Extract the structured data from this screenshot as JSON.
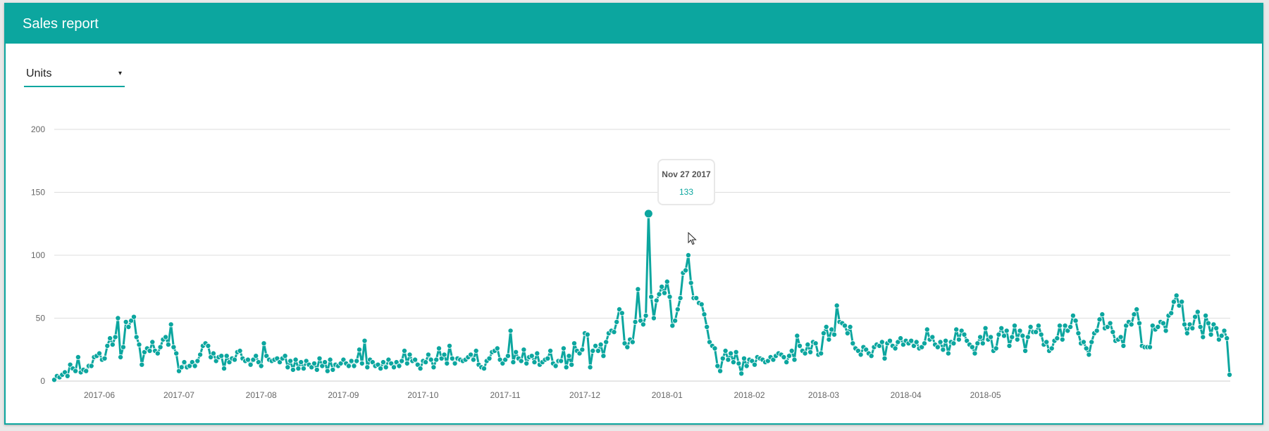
{
  "header": {
    "title": "Sales report"
  },
  "metric_select": {
    "value": "Units",
    "caret": "▾"
  },
  "colors": {
    "accent": "#0ca69f",
    "grid": "#dddddd",
    "axis_text": "#666666"
  },
  "tooltip": {
    "date": "Nov 27 2017",
    "value": "133"
  },
  "chart_data": {
    "type": "line",
    "title": "Sales report",
    "xlabel": "",
    "ylabel": "Units",
    "ylim": [
      0,
      200
    ],
    "yticks": [
      0,
      50,
      100,
      150,
      200
    ],
    "xticks": [
      "2017-06",
      "2017-07",
      "2017-08",
      "2017-09",
      "2017-10",
      "2017-11",
      "2017-12",
      "2018-01",
      "2018-02",
      "2018-03",
      "2018-04",
      "2018-05"
    ],
    "x_start": "2017-05-15",
    "x_end": "2018-05-15",
    "grid": true,
    "legend": null,
    "highlight": {
      "date": "Nov 27 2017",
      "value": 133
    },
    "series": [
      {
        "name": "Units",
        "values": [
          1,
          4,
          3,
          5,
          7,
          4,
          13,
          10,
          8,
          19,
          7,
          9,
          8,
          12,
          12,
          19,
          20,
          22,
          17,
          18,
          28,
          34,
          29,
          35,
          50,
          19,
          27,
          47,
          43,
          48,
          51,
          35,
          29,
          13,
          23,
          26,
          24,
          31,
          24,
          22,
          27,
          33,
          35,
          29,
          45,
          27,
          22,
          8,
          11,
          15,
          11,
          12,
          15,
          12,
          16,
          21,
          28,
          30,
          28,
          19,
          22,
          16,
          19,
          20,
          10,
          20,
          15,
          18,
          17,
          23,
          24,
          18,
          16,
          17,
          13,
          17,
          20,
          15,
          12,
          30,
          20,
          17,
          16,
          17,
          18,
          15,
          18,
          20,
          11,
          16,
          9,
          17,
          10,
          15,
          10,
          16,
          13,
          11,
          14,
          9,
          18,
          12,
          15,
          8,
          17,
          9,
          13,
          12,
          14,
          17,
          14,
          12,
          16,
          12,
          16,
          25,
          14,
          32,
          11,
          17,
          15,
          12,
          13,
          10,
          15,
          11,
          17,
          14,
          11,
          15,
          12,
          16,
          24,
          14,
          21,
          16,
          17,
          13,
          10,
          16,
          15,
          21,
          17,
          11,
          17,
          26,
          18,
          21,
          14,
          28,
          18,
          14,
          18,
          17,
          16,
          17,
          19,
          21,
          17,
          24,
          13,
          11,
          10,
          16,
          18,
          23,
          24,
          26,
          17,
          14,
          17,
          20,
          40,
          15,
          23,
          18,
          16,
          25,
          14,
          19,
          20,
          15,
          22,
          13,
          15,
          17,
          18,
          24,
          14,
          12,
          16,
          16,
          26,
          11,
          20,
          13,
          30,
          24,
          22,
          25,
          38,
          37,
          11,
          24,
          28,
          24,
          29,
          20,
          31,
          38,
          40,
          39,
          47,
          57,
          54,
          30,
          27,
          33,
          31,
          47,
          73,
          48,
          45,
          52,
          133,
          67,
          50,
          64,
          69,
          75,
          70,
          79,
          67,
          44,
          48,
          57,
          66,
          86,
          88,
          100,
          78,
          66,
          66,
          62,
          61,
          53,
          43,
          31,
          28,
          26,
          12,
          8,
          18,
          24,
          17,
          22,
          15,
          23,
          14,
          6,
          18,
          12,
          17,
          16,
          13,
          19,
          18,
          17,
          15,
          16,
          19,
          17,
          20,
          22,
          21,
          19,
          15,
          20,
          24,
          17,
          36,
          28,
          24,
          22,
          29,
          23,
          31,
          30,
          21,
          22,
          38,
          43,
          33,
          41,
          37,
          60,
          47,
          46,
          44,
          38,
          43,
          30,
          26,
          24,
          21,
          27,
          25,
          22,
          20,
          27,
          29,
          28,
          31,
          18,
          30,
          32,
          28,
          26,
          31,
          34,
          29,
          32,
          30,
          32,
          28,
          31,
          26,
          27,
          30,
          41,
          33,
          35,
          29,
          27,
          31,
          25,
          32,
          22,
          31,
          30,
          41,
          33,
          40,
          37,
          32,
          29,
          27,
          22,
          30,
          35,
          30,
          42,
          33,
          35,
          24,
          26,
          37,
          42,
          36,
          40,
          28,
          35,
          44,
          33,
          40,
          36,
          24,
          35,
          43,
          39,
          39,
          44,
          37,
          29,
          31,
          24,
          26,
          32,
          34,
          44,
          33,
          44,
          40,
          43,
          52,
          48,
          38,
          30,
          31,
          26,
          21,
          31,
          38,
          40,
          49,
          53,
          42,
          43,
          46,
          39,
          32,
          33,
          35,
          28,
          44,
          47,
          45,
          53,
          57,
          46,
          28,
          27,
          27,
          27,
          44,
          41,
          43,
          47,
          46,
          40,
          52,
          54,
          63,
          68,
          60,
          63,
          45,
          38,
          45,
          42,
          51,
          55,
          43,
          35,
          52,
          46,
          37,
          45,
          42,
          33,
          36,
          40,
          34,
          5
        ]
      }
    ]
  }
}
